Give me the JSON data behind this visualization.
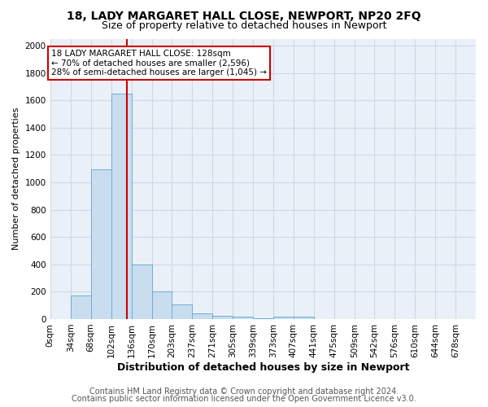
{
  "title1": "18, LADY MARGARET HALL CLOSE, NEWPORT, NP20 2FQ",
  "title2": "Size of property relative to detached houses in Newport",
  "xlabel": "Distribution of detached houses by size in Newport",
  "ylabel": "Number of detached properties",
  "footnote1": "Contains HM Land Registry data © Crown copyright and database right 2024.",
  "footnote2": "Contains public sector information licensed under the Open Government Licence v3.0.",
  "annotation_line1": "18 LADY MARGARET HALL CLOSE: 128sqm",
  "annotation_line2": "← 70% of detached houses are smaller (2,596)",
  "annotation_line3": "28% of semi-detached houses are larger (1,045) →",
  "bar_color": "#c9ddef",
  "bar_edge_color": "#6aaed6",
  "red_line_x": 128,
  "categories": [
    "0sqm",
    "34sqm",
    "68sqm",
    "102sqm",
    "136sqm",
    "170sqm",
    "203sqm",
    "237sqm",
    "271sqm",
    "305sqm",
    "339sqm",
    "373sqm",
    "407sqm",
    "441sqm",
    "475sqm",
    "509sqm",
    "542sqm",
    "576sqm",
    "610sqm",
    "644sqm",
    "678sqm"
  ],
  "bin_edges": [
    0,
    34,
    68,
    102,
    136,
    170,
    203,
    237,
    271,
    305,
    339,
    373,
    407,
    441,
    475,
    509,
    542,
    576,
    610,
    644,
    678,
    712
  ],
  "values": [
    0,
    170,
    1095,
    1650,
    400,
    200,
    105,
    40,
    25,
    15,
    8,
    20,
    15,
    0,
    0,
    0,
    0,
    0,
    0,
    0,
    0
  ],
  "ylim": [
    0,
    2050
  ],
  "yticks": [
    0,
    200,
    400,
    600,
    800,
    1000,
    1200,
    1400,
    1600,
    1800,
    2000
  ],
  "fig_background": "#ffffff",
  "plot_background": "#eaf0f8",
  "grid_color": "#d0d8e4",
  "annotation_box_color": "#ffffff",
  "annotation_box_edge": "#cc0000",
  "red_line_color": "#cc0000",
  "title1_fontsize": 10,
  "title2_fontsize": 9,
  "xlabel_fontsize": 9,
  "ylabel_fontsize": 8,
  "footnote_fontsize": 7,
  "tick_fontsize": 7.5,
  "annotation_fontsize": 7.5
}
